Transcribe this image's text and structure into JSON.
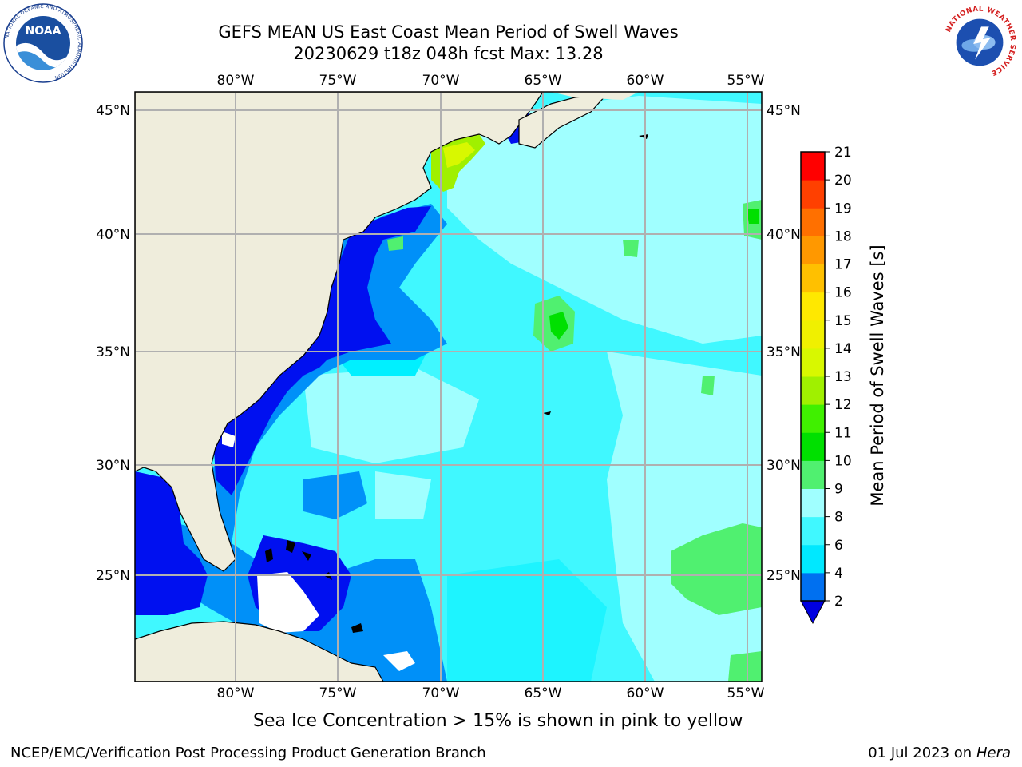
{
  "header": {
    "title_line1": "GEFS MEAN US East Coast Mean Period of Swell Waves",
    "title_line2": "20230629 t18z 048h fcst   Max: 13.28"
  },
  "logos": {
    "noaa": "NOAA",
    "noaa_ring": "NATIONAL OCEANIC AND ATMOSPHERIC ADMINISTRATION",
    "noaa_ring_bottom": "U.S. DEPARTMENT OF COMMERCE",
    "nws_ring": "NATIONAL WEATHER SERVICE"
  },
  "map": {
    "lon_labels": [
      "80°W",
      "75°W",
      "70°W",
      "65°W",
      "60°W",
      "55°W"
    ],
    "lat_labels": [
      "45°N",
      "40°N",
      "35°N",
      "30°N",
      "25°N"
    ],
    "land_color": "#efeddc",
    "grid_color": "#b0b0b0"
  },
  "colorbar": {
    "label": "Mean Period of Swell Waves [s]",
    "ticks": [
      "2",
      "4",
      "6",
      "8",
      "9",
      "10",
      "11",
      "12",
      "13",
      "14",
      "15",
      "16",
      "17",
      "18",
      "19",
      "20",
      "21"
    ],
    "colors": [
      "#0000ff",
      "#0070f0",
      "#00e8ff",
      "#40f8ff",
      "#a0ffff",
      "#50f070",
      "#00e000",
      "#40f000",
      "#a0f000",
      "#d8f800",
      "#f0f000",
      "#ffe800",
      "#ffc000",
      "#ff9800",
      "#ff7000",
      "#ff4000",
      "#ff0000"
    ],
    "extend_min_color": "#0000e0"
  },
  "notes": {
    "sea_ice": "Sea Ice Concentration > 15% is shown in pink to yellow",
    "footer_left": "NCEP/EMC/Verification Post Processing Product Generation Branch",
    "footer_date": "01 Jul 2023 on ",
    "footer_host": "Hera"
  }
}
